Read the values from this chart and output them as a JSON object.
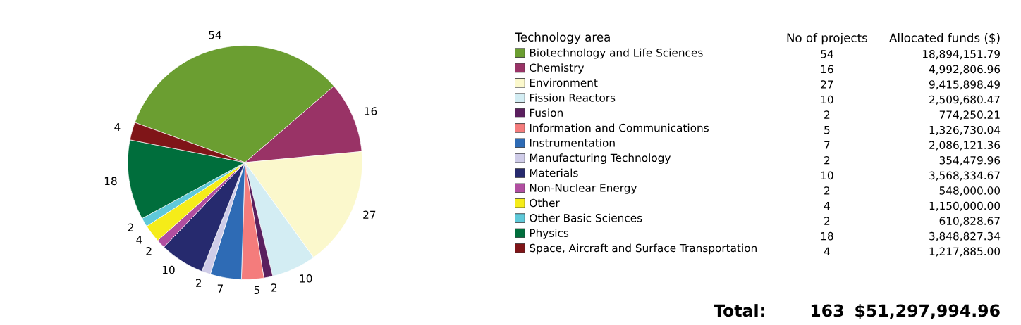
{
  "chart_data": [
    {
      "type": "pie",
      "categories": [
        "Biotechnology and Life Sciences",
        "Chemistry",
        "Environment",
        "Fission Reactors",
        "Fusion",
        "Information and Communications",
        "Instrumentation",
        "Manufacturing Technology",
        "Materials",
        "Non-Nuclear Energy",
        "Other",
        "Other Basic Sciences",
        "Physics",
        "Space, Aircraft and Surface Transportation"
      ],
      "values": [
        54,
        16,
        27,
        10,
        2,
        5,
        7,
        2,
        10,
        2,
        4,
        2,
        18,
        4
      ],
      "colors": [
        "#6b9e31",
        "#993366",
        "#fbf8cc",
        "#d3edf3",
        "#5a1f5e",
        "#f47c7c",
        "#2e6bb5",
        "#cfcce8",
        "#262a6e",
        "#b04ea0",
        "#f5ec19",
        "#5fc9d9",
        "#006e3c",
        "#7f1518"
      ],
      "data_labels": true,
      "legend": "right",
      "legend_title": "Technology area"
    },
    {
      "type": "other",
      "annotations": [
        "No of projects",
        "Allocated funds ($)",
        "54",
        "18,894,151.79",
        "16",
        "4,992,806.96",
        "27",
        "9,415,898.49",
        "10",
        "2,509,680.47",
        "2",
        "774,250.21",
        "5",
        "1,326,730.04",
        "7",
        "2,086,121.36",
        "2",
        "354,479.96",
        "10",
        "3,568,334.67",
        "2",
        "548,000.00",
        "4",
        "1,150,000.00",
        "2",
        "610,828.67",
        "18",
        "3,848,827.34",
        "4",
        "1,217,885.00",
        "Total:",
        "163",
        "$51,297,994.96"
      ]
    }
  ]
}
